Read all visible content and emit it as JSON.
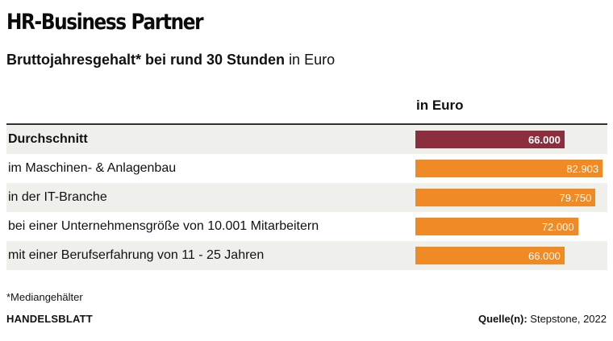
{
  "title": "HR-Business Partner",
  "subtitle": {
    "bold": "Bruttojahresgehalt* bei rund 30 Stunden",
    "normal": "in Euro"
  },
  "column_header": "in Euro",
  "chart_data": {
    "type": "bar",
    "orientation": "horizontal",
    "categories": [
      "Durchschnitt",
      "im Maschinen- & Anlagenbau",
      "in der IT-Branche",
      "bei einer Unternehmensgröße von 10.001 Mitarbeitern",
      "mit einer Berufserfahrung von 11 - 25 Jahren"
    ],
    "values": [
      66000,
      82903,
      79750,
      72000,
      66000
    ],
    "value_labels": [
      "66.000",
      "82.903",
      "79.750",
      "72.000",
      "66.000"
    ],
    "xlim": [
      0,
      85000
    ],
    "colors": {
      "average": "#8b2f3f",
      "default": "#f08a24",
      "row_shade": "#efefeb"
    }
  },
  "footnote": "*Mediangehälter",
  "brand": "HANDELSBLATT",
  "source": {
    "label": "Quelle(n):",
    "text": "Stepstone, 2022"
  }
}
